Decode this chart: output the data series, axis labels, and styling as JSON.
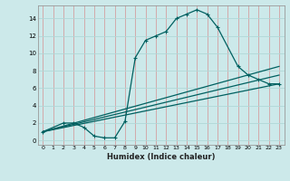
{
  "xlabel": "Humidex (Indice chaleur)",
  "bg_color": "#cce9ea",
  "line_color": "#006060",
  "xlim": [
    -0.5,
    23.5
  ],
  "ylim": [
    -0.5,
    15.5
  ],
  "xtick_labels": [
    "0",
    "1",
    "2",
    "3",
    "4",
    "5",
    "6",
    "7",
    "8",
    "9",
    "10",
    "11",
    "12",
    "13",
    "14",
    "15",
    "16",
    "17",
    "18",
    "19",
    "20",
    "21",
    "22",
    "23"
  ],
  "xtick_vals": [
    0,
    1,
    2,
    3,
    4,
    5,
    6,
    7,
    8,
    9,
    10,
    11,
    12,
    13,
    14,
    15,
    16,
    17,
    18,
    19,
    20,
    21,
    22,
    23
  ],
  "ytick_vals": [
    0,
    2,
    4,
    6,
    8,
    10,
    12,
    14
  ],
  "ytick_labels": [
    "0",
    "2",
    "4",
    "6",
    "8",
    "10",
    "12",
    "14"
  ],
  "line1_x": [
    0,
    2,
    3,
    4,
    5,
    6,
    7,
    8,
    9,
    10,
    11,
    12,
    13,
    14,
    15,
    16,
    17,
    19,
    20,
    21,
    22,
    23
  ],
  "line1_y": [
    1,
    2,
    2,
    1.5,
    0.5,
    0.3,
    0.3,
    2.2,
    9.5,
    11.5,
    12.0,
    12.5,
    14.0,
    14.5,
    15.0,
    14.5,
    13.0,
    8.5,
    7.5,
    7.0,
    6.5,
    6.5
  ],
  "line2_x": [
    0,
    23
  ],
  "line2_y": [
    1,
    6.5
  ],
  "line3_x": [
    0,
    23
  ],
  "line3_y": [
    1,
    7.5
  ],
  "line4_x": [
    0,
    23
  ],
  "line4_y": [
    1,
    8.5
  ],
  "vgrid_color": "#d4a0a0",
  "hgrid_color": "#b0d8d8"
}
